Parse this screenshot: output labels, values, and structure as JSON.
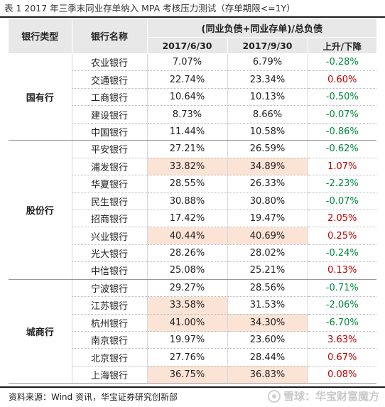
{
  "caption": "表 1   2017 年三季末同业存单纳入 MPA 考核压力测试（存单期限<=1Y）",
  "headers": {
    "bank_type": "银行类型",
    "bank_name": "银行名称",
    "ratio_title": "(同业负债+同业存单)/总负债",
    "col1": "2017/6/30",
    "col2": "2017/9/30",
    "col3": "上升/下降"
  },
  "groups": [
    {
      "type": "国有行",
      "rows": [
        {
          "name": "农业银行",
          "v1": "7.07%",
          "v2": "6.79%",
          "chg": "-0.28%",
          "dir": "neg",
          "hl": false
        },
        {
          "name": "交通银行",
          "v1": "22.74%",
          "v2": "23.34%",
          "chg": "0.60%",
          "dir": "pos",
          "hl": false
        },
        {
          "name": "工商银行",
          "v1": "10.64%",
          "v2": "10.13%",
          "chg": "-0.50%",
          "dir": "neg",
          "hl": false
        },
        {
          "name": "建设银行",
          "v1": "8.73%",
          "v2": "8.66%",
          "chg": "-0.07%",
          "dir": "neg",
          "hl": false
        },
        {
          "name": "中国银行",
          "v1": "11.44%",
          "v2": "10.58%",
          "chg": "-0.86%",
          "dir": "neg",
          "hl": false
        }
      ]
    },
    {
      "type": "股份行",
      "rows": [
        {
          "name": "平安银行",
          "v1": "27.21%",
          "v2": "26.59%",
          "chg": "-0.62%",
          "dir": "neg",
          "hl": false
        },
        {
          "name": "浦发银行",
          "v1": "33.82%",
          "v2": "34.89%",
          "chg": "1.07%",
          "dir": "pos",
          "hl": true
        },
        {
          "name": "华夏银行",
          "v1": "28.55%",
          "v2": "26.33%",
          "chg": "-2.23%",
          "dir": "neg",
          "hl": false
        },
        {
          "name": "民生银行",
          "v1": "30.88%",
          "v2": "30.80%",
          "chg": "-0.07%",
          "dir": "neg",
          "hl": false
        },
        {
          "name": "招商银行",
          "v1": "17.42%",
          "v2": "19.47%",
          "chg": "2.05%",
          "dir": "pos",
          "hl": false
        },
        {
          "name": "兴业银行",
          "v1": "40.44%",
          "v2": "40.69%",
          "chg": "0.25%",
          "dir": "pos",
          "hl": true
        },
        {
          "name": "光大银行",
          "v1": "28.26%",
          "v2": "28.02%",
          "chg": "-0.24%",
          "dir": "neg",
          "hl": false
        },
        {
          "name": "中信银行",
          "v1": "25.08%",
          "v2": "25.21%",
          "chg": "0.13%",
          "dir": "pos",
          "hl": false
        }
      ]
    },
    {
      "type": "城商行",
      "rows": [
        {
          "name": "宁波银行",
          "v1": "29.27%",
          "v2": "28.56%",
          "chg": "-0.71%",
          "dir": "neg",
          "hl": false
        },
        {
          "name": "江苏银行",
          "v1": "33.58%",
          "v2": "31.53%",
          "chg": "-2.06%",
          "dir": "neg",
          "hl": "v1"
        },
        {
          "name": "杭州银行",
          "v1": "41.00%",
          "v2": "34.30%",
          "chg": "-6.70%",
          "dir": "neg",
          "hl": true
        },
        {
          "name": "南京银行",
          "v1": "19.97%",
          "v2": "23.60%",
          "chg": "3.63%",
          "dir": "pos",
          "hl": false
        },
        {
          "name": "北京银行",
          "v1": "27.76%",
          "v2": "28.44%",
          "chg": "0.67%",
          "dir": "pos",
          "hl": false
        },
        {
          "name": "上海银行",
          "v1": "36.75%",
          "v2": "36.83%",
          "chg": "0.08%",
          "dir": "pos",
          "hl": true
        }
      ]
    }
  ],
  "footer": {
    "source": "资料来源：Wind 资讯，华宝证券研究创新部",
    "watermark": "雪球：华宝财富魔方"
  },
  "colors": {
    "positive": "#c00000",
    "negative": "#008a3e",
    "highlight": "#fbe4d5",
    "header_bg": "#e8e8e8"
  }
}
